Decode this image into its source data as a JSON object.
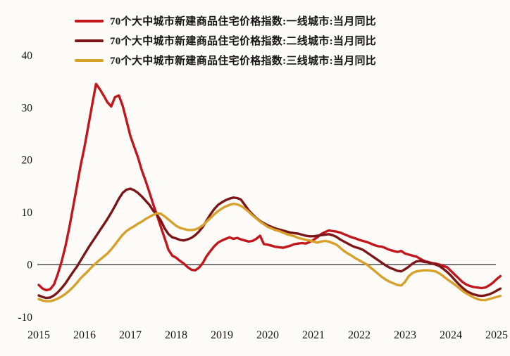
{
  "colors": {
    "background": "#fcfbf8",
    "axis": "#2a2a2a",
    "text": "#141414",
    "tier1_red": "#c3161c",
    "tier2_maroon": "#7b1517",
    "tier3_gold": "#d7a02a"
  },
  "legend": {
    "tier1": "70个大中城市新建商品住宅价格指数:一线城市:当月同比",
    "tier2": "70个大中城市新建商品住宅价格指数:二线城市:当月同比",
    "tier3": "70个大中城市新建商品住宅价格指数:三线城市:当月同比"
  },
  "chart_data": {
    "type": "line",
    "title": "",
    "xlabel": "",
    "ylabel": "",
    "freq": "monthly",
    "start": "2015-01",
    "end": "2025-02",
    "grid": "zero-line-only",
    "legend_position": "top",
    "ylim": [
      -10,
      42
    ],
    "y_ticks": [
      40,
      30,
      20,
      10,
      0,
      -10
    ],
    "x_tick_labels": [
      "2015",
      "2016",
      "2017",
      "2018",
      "2019",
      "2020",
      "2021",
      "2022",
      "2023",
      "2024",
      "2025"
    ],
    "series": [
      {
        "name": "70个大中城市新建商品住宅价格指数:一线城市:当月同比",
        "color": "#c3161c",
        "values": [
          -3.9,
          -4.6,
          -4.9,
          -4.7,
          -3.8,
          -1.8,
          0.6,
          3.5,
          7.0,
          11.0,
          15.0,
          19.0,
          22.5,
          26.5,
          30.5,
          34.5,
          33.5,
          32.3,
          31.0,
          30.2,
          32.0,
          32.3,
          30.3,
          27.5,
          24.6,
          22.5,
          20.5,
          18.0,
          16.0,
          13.8,
          11.5,
          9.4,
          7.2,
          5.0,
          2.8,
          1.7,
          1.3,
          0.7,
          0.2,
          -0.5,
          -1.0,
          -1.1,
          -0.6,
          0.3,
          1.6,
          2.6,
          3.5,
          4.2,
          4.6,
          4.9,
          5.2,
          4.9,
          5.1,
          4.8,
          4.6,
          4.4,
          4.5,
          4.9,
          5.5,
          3.9,
          3.8,
          3.6,
          3.4,
          3.3,
          3.2,
          3.4,
          3.6,
          3.9,
          4.0,
          4.1,
          4.0,
          4.3,
          4.7,
          5.2,
          5.8,
          6.2,
          6.5,
          6.4,
          6.3,
          6.1,
          5.8,
          5.5,
          5.2,
          5.0,
          4.7,
          4.5,
          4.3,
          4.0,
          3.7,
          3.5,
          3.4,
          3.1,
          2.8,
          2.6,
          2.4,
          2.6,
          2.1,
          1.9,
          1.7,
          1.5,
          1.1,
          0.7,
          0.5,
          0.3,
          0.2,
          0.0,
          -0.3,
          -0.5,
          -1.2,
          -1.9,
          -2.6,
          -3.3,
          -3.8,
          -4.1,
          -4.3,
          -4.4,
          -4.5,
          -4.4,
          -4.0,
          -3.5,
          -2.8,
          -2.2
        ]
      },
      {
        "name": "70个大中城市新建商品住宅价格指数:二线城市:当月同比",
        "color": "#7b1517",
        "values": [
          -5.9,
          -6.2,
          -6.4,
          -6.3,
          -5.9,
          -5.3,
          -4.5,
          -3.6,
          -2.5,
          -1.4,
          -0.4,
          0.8,
          2.0,
          3.2,
          4.3,
          5.4,
          6.5,
          7.6,
          8.7,
          9.9,
          11.2,
          12.6,
          13.7,
          14.3,
          14.5,
          14.2,
          13.7,
          13.0,
          12.2,
          11.4,
          10.3,
          9.5,
          8.4,
          6.9,
          5.8,
          5.2,
          5.0,
          4.7,
          4.6,
          4.8,
          5.1,
          5.6,
          6.3,
          7.2,
          8.4,
          9.6,
          10.6,
          11.4,
          11.9,
          12.3,
          12.6,
          12.8,
          12.7,
          12.4,
          11.4,
          10.4,
          9.6,
          8.9,
          8.3,
          7.9,
          7.5,
          7.2,
          6.9,
          6.7,
          6.5,
          6.3,
          6.1,
          6.0,
          5.9,
          5.7,
          5.5,
          5.4,
          5.4,
          5.5,
          5.6,
          5.7,
          5.8,
          5.6,
          5.3,
          4.8,
          4.4,
          4.0,
          3.6,
          3.3,
          3.1,
          2.8,
          2.3,
          1.8,
          1.3,
          0.8,
          0.3,
          -0.2,
          -0.6,
          -0.9,
          -1.2,
          -1.3,
          -0.9,
          -0.4,
          0.2,
          0.6,
          0.7,
          0.5,
          0.4,
          0.2,
          0.0,
          -0.3,
          -0.8,
          -1.4,
          -2.1,
          -2.9,
          -3.7,
          -4.4,
          -5.0,
          -5.4,
          -5.7,
          -5.9,
          -6.0,
          -5.9,
          -5.7,
          -5.4,
          -5.0,
          -4.6
        ]
      },
      {
        "name": "70个大中城市新建商品住宅价格指数:三线城市:当月同比",
        "color": "#d7a02a",
        "values": [
          -6.6,
          -6.9,
          -7.0,
          -7.0,
          -6.8,
          -6.5,
          -6.1,
          -5.6,
          -5.0,
          -4.3,
          -3.5,
          -2.6,
          -1.9,
          -1.2,
          -0.4,
          0.3,
          0.9,
          1.5,
          2.1,
          2.9,
          3.8,
          4.8,
          5.7,
          6.4,
          6.9,
          7.3,
          7.8,
          8.2,
          8.7,
          9.1,
          9.5,
          9.8,
          9.7,
          9.2,
          8.6,
          8.0,
          7.4,
          7.0,
          6.8,
          6.6,
          6.6,
          6.7,
          7.0,
          7.5,
          8.2,
          8.9,
          9.6,
          10.2,
          10.7,
          11.1,
          11.4,
          11.6,
          11.5,
          11.2,
          10.7,
          10.1,
          9.4,
          8.8,
          8.2,
          7.7,
          7.2,
          6.9,
          6.6,
          6.4,
          6.1,
          5.8,
          5.6,
          5.4,
          5.1,
          4.9,
          4.7,
          4.6,
          4.4,
          4.2,
          4.4,
          4.5,
          4.4,
          4.1,
          3.8,
          3.2,
          2.6,
          2.1,
          1.7,
          1.2,
          0.8,
          0.4,
          0.0,
          -0.6,
          -1.2,
          -1.8,
          -2.4,
          -2.9,
          -3.3,
          -3.6,
          -3.9,
          -4.0,
          -3.3,
          -2.2,
          -1.6,
          -1.3,
          -1.2,
          -1.1,
          -1.1,
          -1.2,
          -1.3,
          -1.7,
          -2.2,
          -2.8,
          -3.3,
          -3.8,
          -4.4,
          -5.0,
          -5.5,
          -5.9,
          -6.3,
          -6.6,
          -6.8,
          -6.8,
          -6.6,
          -6.4,
          -6.2,
          -6.0
        ]
      }
    ]
  }
}
